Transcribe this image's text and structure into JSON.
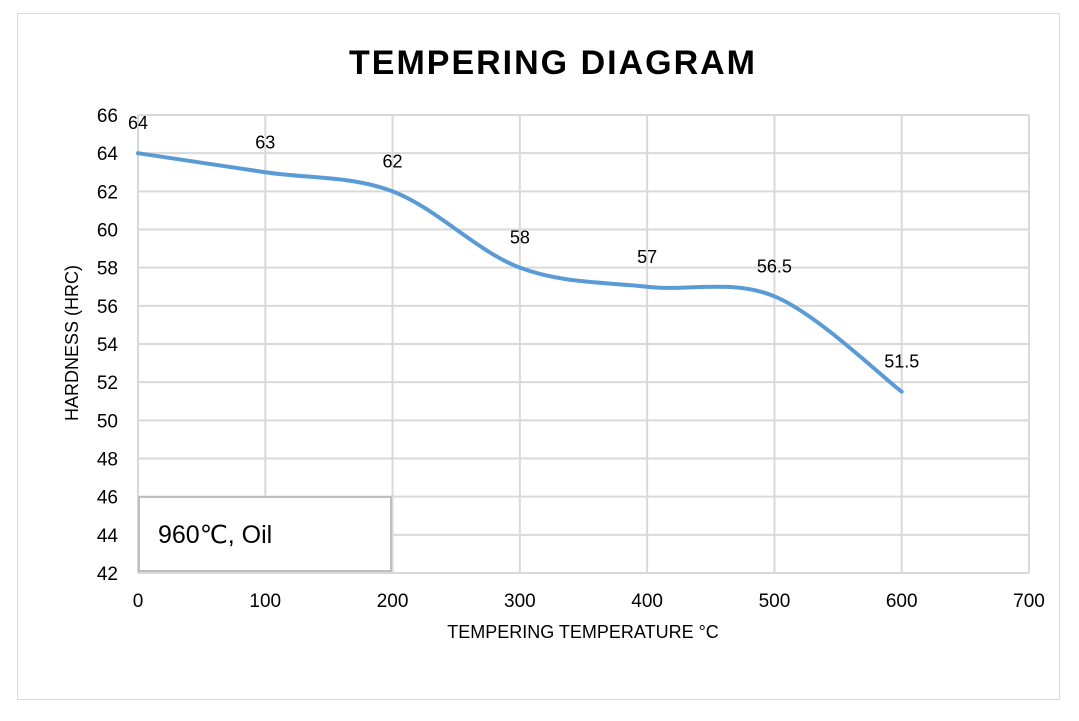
{
  "chart_data": {
    "type": "line",
    "title": "TEMPERING DIAGRAM",
    "xlabel": "TEMPERING TEMPERATURE °C",
    "ylabel": "HARDNESS (HRC)",
    "xlim": [
      0,
      700
    ],
    "ylim": [
      42,
      66
    ],
    "xticks": [
      0,
      100,
      200,
      300,
      400,
      500,
      600,
      700
    ],
    "yticks": [
      42,
      44,
      46,
      48,
      50,
      52,
      54,
      56,
      58,
      60,
      62,
      64,
      66
    ],
    "grid": true,
    "smooth": true,
    "series": [
      {
        "name": "Hardness",
        "color": "#5b9bd5",
        "x": [
          0,
          100,
          200,
          300,
          400,
          500,
          600
        ],
        "y": [
          64,
          63,
          62,
          58,
          57,
          56.5,
          51.5
        ],
        "labels": [
          "64",
          "63",
          "62",
          "58",
          "57",
          "56.5",
          "51.5"
        ]
      }
    ],
    "annotation": "960℃, Oil"
  }
}
